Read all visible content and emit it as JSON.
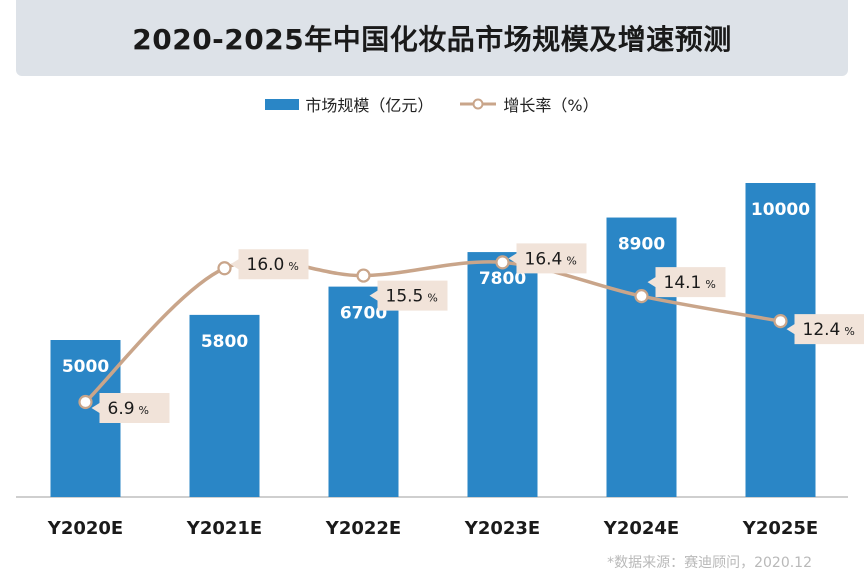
{
  "title": "2020-2025年中国化妆品市场规模及增速预测",
  "source_note": "*数据来源：赛迪顾问，2020.12",
  "colors": {
    "bar": "#2a86c6",
    "line": "#c9a58a",
    "label_bg": "#f1e3d9",
    "axis": "#bfbfbf",
    "title_bg": "#dde2e8"
  },
  "chart_data": {
    "type": "bar",
    "title": "2020-2025年中国化妆品市场规模及增速预测",
    "categories": [
      "Y2020E",
      "Y2021E",
      "Y2022E",
      "Y2023E",
      "Y2024E",
      "Y2025E"
    ],
    "series": [
      {
        "name": "市场规模（亿元）",
        "type": "bar",
        "values": [
          5000,
          5800,
          6700,
          7800,
          8900,
          10000
        ],
        "labels": [
          "5000",
          "5800",
          "6700",
          "7800",
          "8900",
          "10000"
        ]
      },
      {
        "name": "增长率（%）",
        "type": "line",
        "values": [
          6.9,
          16.0,
          15.5,
          16.4,
          14.1,
          12.4
        ],
        "labels": [
          "6.9",
          "16.0",
          "15.5",
          "16.4",
          "14.1",
          "12.4"
        ],
        "unit": "%"
      }
    ],
    "legend": "top-center",
    "grid": false
  }
}
